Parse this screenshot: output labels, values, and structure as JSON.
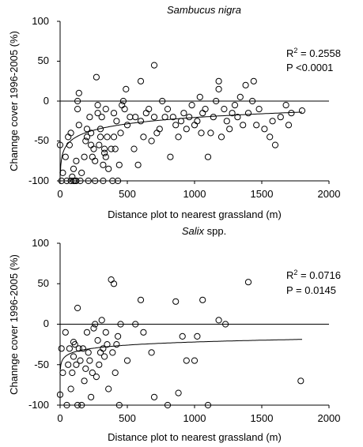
{
  "chart_data": [
    {
      "type": "scatter",
      "title": "Sambucus nigra",
      "title_suffix": "",
      "xlabel": "Distance plot to nearest grassland (m)",
      "ylabel": "Channge cover 1996-2005 (%)",
      "xlim": [
        0,
        2000
      ],
      "ylim": [
        -100,
        100
      ],
      "xticks": [
        "0",
        "500",
        "1000",
        "1500",
        "2000"
      ],
      "yticks": [
        "-100",
        "-50",
        "0",
        "50",
        "100"
      ],
      "stats": {
        "r2_label": "R",
        "r2_sup": "2",
        "r2_value": " = 0.2558",
        "p_text": "P <0.0001"
      },
      "fit": {
        "a": -100,
        "b": 11.5
      },
      "points": [
        [
          0,
          -55
        ],
        [
          10,
          -100
        ],
        [
          20,
          -90
        ],
        [
          40,
          -70
        ],
        [
          50,
          -100
        ],
        [
          60,
          -45
        ],
        [
          70,
          -55
        ],
        [
          80,
          -100
        ],
        [
          80,
          -40
        ],
        [
          90,
          -95
        ],
        [
          100,
          -85
        ],
        [
          100,
          -100
        ],
        [
          110,
          -100
        ],
        [
          120,
          -75
        ],
        [
          120,
          -100
        ],
        [
          130,
          -10
        ],
        [
          130,
          0
        ],
        [
          140,
          10
        ],
        [
          140,
          -30
        ],
        [
          150,
          -100
        ],
        [
          160,
          -90
        ],
        [
          180,
          -70
        ],
        [
          190,
          -50
        ],
        [
          200,
          -45
        ],
        [
          200,
          -35
        ],
        [
          210,
          -100
        ],
        [
          220,
          -20
        ],
        [
          230,
          -55
        ],
        [
          230,
          -40
        ],
        [
          240,
          -70
        ],
        [
          250,
          -60
        ],
        [
          260,
          -75
        ],
        [
          260,
          -100
        ],
        [
          270,
          30
        ],
        [
          280,
          -15
        ],
        [
          280,
          -5
        ],
        [
          290,
          -55
        ],
        [
          300,
          -35
        ],
        [
          300,
          -45
        ],
        [
          310,
          -20
        ],
        [
          320,
          -80
        ],
        [
          320,
          -100
        ],
        [
          330,
          -60
        ],
        [
          330,
          -65
        ],
        [
          340,
          -70
        ],
        [
          340,
          -10
        ],
        [
          350,
          -45
        ],
        [
          360,
          -85
        ],
        [
          380,
          -60
        ],
        [
          390,
          -100
        ],
        [
          400,
          -15
        ],
        [
          400,
          -45
        ],
        [
          410,
          -60
        ],
        [
          420,
          -25
        ],
        [
          430,
          -100
        ],
        [
          440,
          -80
        ],
        [
          450,
          -40
        ],
        [
          460,
          -5
        ],
        [
          470,
          0
        ],
        [
          480,
          -10
        ],
        [
          490,
          15
        ],
        [
          500,
          -30
        ],
        [
          520,
          -20
        ],
        [
          550,
          -60
        ],
        [
          560,
          -20
        ],
        [
          580,
          -80
        ],
        [
          600,
          -25
        ],
        [
          620,
          -45
        ],
        [
          640,
          -15
        ],
        [
          660,
          -10
        ],
        [
          680,
          -50
        ],
        [
          700,
          -20
        ],
        [
          720,
          -40
        ],
        [
          740,
          -35
        ],
        [
          760,
          0
        ],
        [
          780,
          -20
        ],
        [
          800,
          -10
        ],
        [
          820,
          -70
        ],
        [
          840,
          -20
        ],
        [
          860,
          -30
        ],
        [
          880,
          -45
        ],
        [
          900,
          -25
        ],
        [
          920,
          -15
        ],
        [
          940,
          -35
        ],
        [
          960,
          -20
        ],
        [
          980,
          -5
        ],
        [
          1000,
          -30
        ],
        [
          1020,
          -25
        ],
        [
          1040,
          5
        ],
        [
          1060,
          -15
        ],
        [
          1080,
          -10
        ],
        [
          1100,
          -70
        ],
        [
          1120,
          -40
        ],
        [
          1140,
          -20
        ],
        [
          1160,
          0
        ],
        [
          1180,
          15
        ],
        [
          1200,
          -45
        ],
        [
          1220,
          -10
        ],
        [
          1240,
          -25
        ],
        [
          1260,
          -35
        ],
        [
          1280,
          -15
        ],
        [
          1300,
          -5
        ],
        [
          1320,
          -20
        ],
        [
          1340,
          5
        ],
        [
          1360,
          -30
        ],
        [
          1380,
          20
        ],
        [
          1400,
          -15
        ],
        [
          1430,
          0
        ],
        [
          1460,
          -30
        ],
        [
          1480,
          -10
        ],
        [
          1520,
          -35
        ],
        [
          1560,
          -45
        ],
        [
          1600,
          -55
        ],
        [
          1640,
          -20
        ],
        [
          1680,
          -5
        ],
        [
          1720,
          -15
        ],
        [
          1800,
          -12
        ],
        [
          1580,
          -25
        ],
        [
          1440,
          25
        ],
        [
          1180,
          25
        ],
        [
          600,
          25
        ],
        [
          700,
          45
        ],
        [
          1700,
          -30
        ],
        [
          1050,
          -40
        ]
      ]
    },
    {
      "type": "scatter",
      "title": "Salix",
      "title_suffix": " spp.",
      "xlabel": "Distance plot to nearest grassland (m)",
      "ylabel": "Channge cover 1996-2005 (%)",
      "xlim": [
        0,
        2000
      ],
      "ylim": [
        -100,
        100
      ],
      "xticks": [
        "0",
        "500",
        "1000",
        "1500",
        "2000"
      ],
      "yticks": [
        "-100",
        "-50",
        "0",
        "50",
        "100"
      ],
      "stats": {
        "r2_label": "R",
        "r2_sup": "2",
        "r2_value": " = 0.0716",
        "p_text": "P = 0.0145"
      },
      "fit": {
        "a": -60,
        "b": 5.5
      },
      "points": [
        [
          0,
          -87
        ],
        [
          10,
          -30
        ],
        [
          20,
          -60
        ],
        [
          40,
          -10
        ],
        [
          50,
          -100
        ],
        [
          60,
          -50
        ],
        [
          70,
          -30
        ],
        [
          80,
          -80
        ],
        [
          90,
          -60
        ],
        [
          100,
          -40
        ],
        [
          100,
          -22
        ],
        [
          110,
          -25
        ],
        [
          120,
          -50
        ],
        [
          130,
          20
        ],
        [
          130,
          -100
        ],
        [
          140,
          -30
        ],
        [
          150,
          -45
        ],
        [
          160,
          -100
        ],
        [
          170,
          -30
        ],
        [
          180,
          -70
        ],
        [
          190,
          -55
        ],
        [
          200,
          -10
        ],
        [
          210,
          -35
        ],
        [
          220,
          -45
        ],
        [
          230,
          -90
        ],
        [
          240,
          -60
        ],
        [
          250,
          -5
        ],
        [
          260,
          0
        ],
        [
          270,
          -65
        ],
        [
          280,
          -20
        ],
        [
          290,
          -50
        ],
        [
          300,
          -35
        ],
        [
          310,
          5
        ],
        [
          320,
          -30
        ],
        [
          330,
          -40
        ],
        [
          340,
          -10
        ],
        [
          350,
          -25
        ],
        [
          360,
          -80
        ],
        [
          380,
          55
        ],
        [
          390,
          -35
        ],
        [
          400,
          50
        ],
        [
          410,
          -60
        ],
        [
          420,
          -25
        ],
        [
          430,
          -15
        ],
        [
          440,
          -100
        ],
        [
          450,
          0
        ],
        [
          500,
          -45
        ],
        [
          560,
          0
        ],
        [
          600,
          30
        ],
        [
          620,
          -10
        ],
        [
          680,
          -35
        ],
        [
          700,
          -90
        ],
        [
          800,
          -100
        ],
        [
          860,
          28
        ],
        [
          880,
          -85
        ],
        [
          910,
          -15
        ],
        [
          940,
          -45
        ],
        [
          1000,
          -45
        ],
        [
          1020,
          -15
        ],
        [
          1060,
          30
        ],
        [
          1100,
          -100
        ],
        [
          1180,
          5
        ],
        [
          1230,
          0
        ],
        [
          1400,
          52
        ],
        [
          1790,
          -70
        ]
      ]
    }
  ]
}
